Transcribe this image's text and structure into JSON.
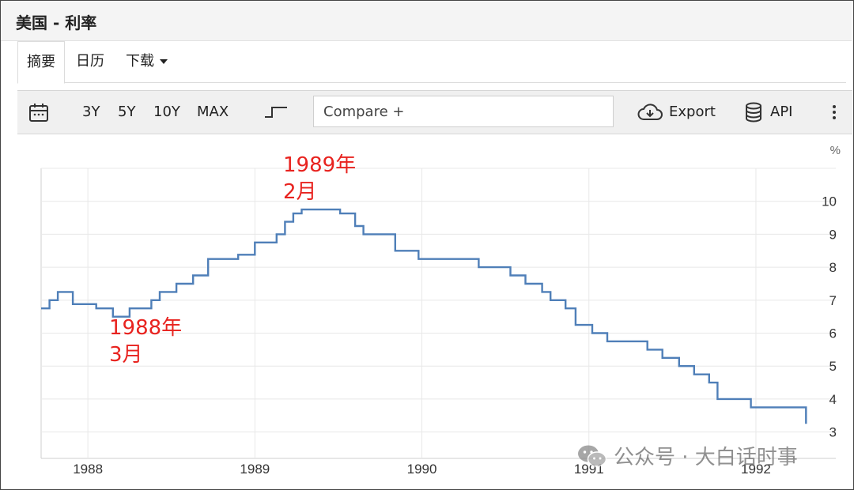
{
  "window": {
    "title": "美国 - 利率"
  },
  "tabs": [
    {
      "label": "摘要",
      "active": true
    },
    {
      "label": "日历",
      "active": false
    },
    {
      "label": "下载",
      "active": false
    }
  ],
  "toolbar": {
    "calendar_icon": "calendar-icon",
    "ranges": [
      "3Y",
      "5Y",
      "10Y",
      "MAX"
    ],
    "chart_type_icon": "step-line-icon",
    "compare_placeholder": "Compare +",
    "export_label": "Export",
    "api_label": "API",
    "more_icon": "vertical-dots-icon"
  },
  "annotations": [
    {
      "label_year": "1989年",
      "label_month": "2月"
    },
    {
      "label_year": "1988年",
      "label_month": "3月"
    }
  ],
  "watermark": "公众号 · 大白话时事",
  "colors": {
    "line": "#4f7fb8",
    "annotation": "#e8231f",
    "grid": "#e8e8e8"
  },
  "chart_data": {
    "type": "line",
    "step": true,
    "title": "",
    "xlabel": "",
    "ylabel": "%",
    "xlim": [
      1987.72,
      1992.36
    ],
    "ylim": [
      2.2,
      11
    ],
    "x_ticks": [
      1988,
      1989,
      1990,
      1991,
      1992
    ],
    "x_tick_labels": [
      "1988",
      "1989",
      "1990",
      "1991",
      "1992"
    ],
    "y_ticks": [
      3,
      4,
      5,
      6,
      7,
      8,
      9,
      10
    ],
    "y_tick_labels": [
      "3",
      "4",
      "5",
      "6",
      "7",
      "8",
      "9",
      "10"
    ],
    "grid": true,
    "series": [
      {
        "points": [
          [
            1987.72,
            6.75
          ],
          [
            1987.77,
            7.0
          ],
          [
            1987.82,
            7.25
          ],
          [
            1987.91,
            6.88
          ],
          [
            1988.05,
            6.75
          ],
          [
            1988.15,
            6.5
          ],
          [
            1988.25,
            6.75
          ],
          [
            1988.38,
            7.0
          ],
          [
            1988.43,
            7.25
          ],
          [
            1988.53,
            7.5
          ],
          [
            1988.63,
            7.75
          ],
          [
            1988.72,
            8.25
          ],
          [
            1988.9,
            8.38
          ],
          [
            1989.0,
            8.75
          ],
          [
            1989.13,
            9.0
          ],
          [
            1989.18,
            9.38
          ],
          [
            1989.23,
            9.63
          ],
          [
            1989.28,
            9.75
          ],
          [
            1989.51,
            9.63
          ],
          [
            1989.6,
            9.25
          ],
          [
            1989.65,
            9.0
          ],
          [
            1989.84,
            8.5
          ],
          [
            1989.98,
            8.25
          ],
          [
            1990.34,
            8.0
          ],
          [
            1990.53,
            7.75
          ],
          [
            1990.62,
            7.5
          ],
          [
            1990.72,
            7.25
          ],
          [
            1990.77,
            7.0
          ],
          [
            1990.86,
            6.75
          ],
          [
            1990.92,
            6.25
          ],
          [
            1991.02,
            6.0
          ],
          [
            1991.11,
            5.75
          ],
          [
            1991.35,
            5.5
          ],
          [
            1991.44,
            5.25
          ],
          [
            1991.54,
            5.0
          ],
          [
            1991.63,
            4.75
          ],
          [
            1991.72,
            4.5
          ],
          [
            1991.77,
            4.0
          ],
          [
            1991.97,
            3.75
          ],
          [
            1992.3,
            3.25
          ]
        ]
      }
    ]
  }
}
